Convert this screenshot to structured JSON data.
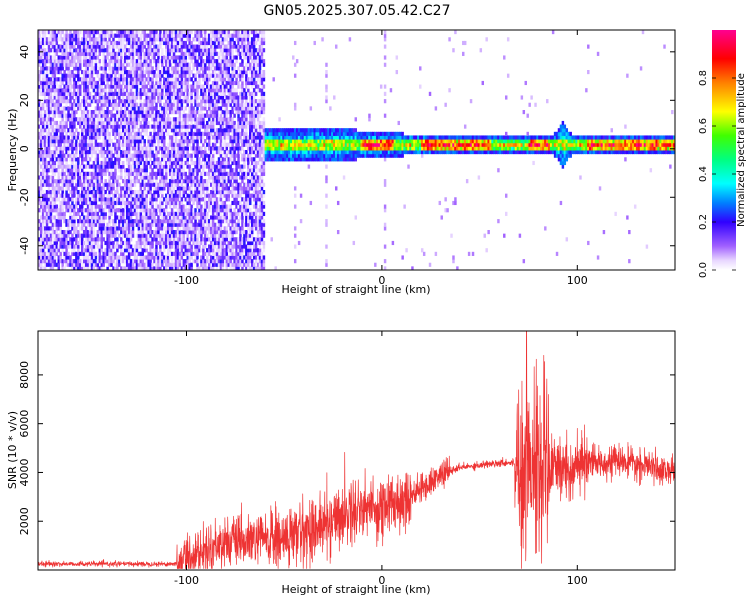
{
  "title": "GN05.2025.307.05.42.C27",
  "chart_data": [
    {
      "type": "heatmap",
      "title": "GN05.2025.307.05.42.C27",
      "xlabel": "Height of straight line (km)",
      "ylabel": "Frequency (Hz)",
      "xlim": [
        -176,
        150
      ],
      "ylim": [
        -50,
        49
      ],
      "x_ticks": [
        -100,
        0,
        100
      ],
      "y_ticks": [
        -40,
        -20,
        0,
        20,
        40
      ],
      "colorbar": {
        "label": "Normalized spectral amplitude",
        "range": [
          0,
          1
        ],
        "ticks": [
          0.0,
          0.2,
          0.4,
          0.6,
          0.8
        ]
      },
      "features": {
        "noise_region_x": [
          -176,
          -60
        ],
        "signal_band_center_hz": 1,
        "signal_band_halfwidth_hz": [
          3,
          8
        ],
        "strong_ridges_x": [
          [
            -10,
            5
          ],
          [
            20,
            55
          ],
          [
            75,
            85
          ],
          [
            105,
            150
          ]
        ],
        "broadband_bursts_x": [
          92
        ]
      }
    },
    {
      "type": "line",
      "xlabel": "Height of straight line (km)",
      "ylabel": "SNR (10 * v/v)",
      "xlim": [
        -176,
        150
      ],
      "ylim": [
        0,
        9800
      ],
      "x_ticks": [
        -100,
        0,
        100
      ],
      "y_ticks": [
        2000,
        4000,
        6000,
        8000
      ],
      "line_color": "#ee3333",
      "key_points": {
        "x": [
          -176,
          -105,
          -100,
          -90,
          -80,
          -70,
          -60,
          -50,
          -40,
          -30,
          -20,
          -10,
          0,
          10,
          20,
          30,
          40,
          50,
          60,
          68,
          70,
          75,
          80,
          85,
          90,
          100,
          110,
          120,
          130,
          140,
          150
        ],
        "y": [
          250,
          250,
          500,
          800,
          1200,
          1100,
          1300,
          1200,
          1600,
          1800,
          2300,
          2600,
          2500,
          2900,
          3300,
          3900,
          4200,
          4300,
          4400,
          4400,
          4300,
          4700,
          4300,
          4200,
          4100,
          4200,
          4400,
          4500,
          4300,
          4200,
          4000
        ]
      },
      "peak": {
        "x": 74,
        "y": 9800
      }
    }
  ]
}
